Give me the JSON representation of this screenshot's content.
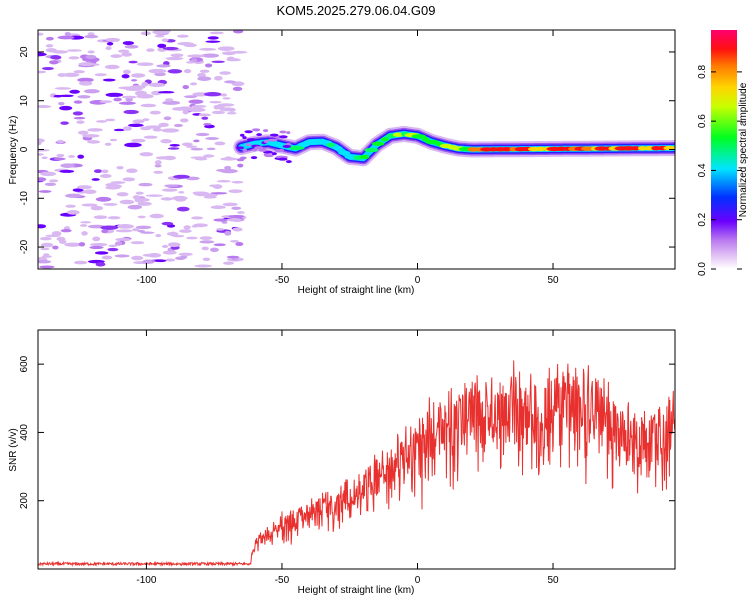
{
  "title": "KOM5.2025.279.06.04.G09",
  "chart_data": [
    {
      "type": "heatmap",
      "name": "spectrogram",
      "xlabel": "Height of straight line (km)",
      "ylabel": "Frequency (Hz)",
      "xlim": [
        -140,
        95
      ],
      "ylim": [
        -24.5,
        24.5
      ],
      "xticks": [
        -100,
        -50,
        0,
        50
      ],
      "yticks": [
        -20,
        -10,
        0,
        10,
        20
      ],
      "noise_region_x": [
        -140,
        -65
      ],
      "signal_start_x": -65,
      "trace_freq": [
        {
          "x": -65,
          "f": 0.5
        },
        {
          "x": -60,
          "f": 1.2
        },
        {
          "x": -55,
          "f": 1.5
        },
        {
          "x": -50,
          "f": 0.8
        },
        {
          "x": -45,
          "f": 0.2
        },
        {
          "x": -40,
          "f": 1.5
        },
        {
          "x": -35,
          "f": 1.6
        },
        {
          "x": -30,
          "f": 0.5
        },
        {
          "x": -25,
          "f": -1.5
        },
        {
          "x": -20,
          "f": -1.8
        },
        {
          "x": -15,
          "f": 1.0
        },
        {
          "x": -10,
          "f": 2.8
        },
        {
          "x": -5,
          "f": 3.2
        },
        {
          "x": 0,
          "f": 2.8
        },
        {
          "x": 5,
          "f": 1.6
        },
        {
          "x": 10,
          "f": 0.8
        },
        {
          "x": 15,
          "f": 0.2
        },
        {
          "x": 20,
          "f": 0.0
        },
        {
          "x": 95,
          "f": 0.3
        }
      ],
      "colorbar": {
        "label": "Normalized spectral amplitude",
        "range": [
          0.0,
          0.97
        ],
        "ticks": [
          "0.0",
          "0.2",
          "0.4",
          "0.6",
          "0.8"
        ],
        "tick_values": [
          0.0,
          0.2,
          0.4,
          0.6,
          0.8
        ]
      }
    },
    {
      "type": "line",
      "name": "snr",
      "xlabel": "Height of straight line (km)",
      "ylabel": "SNR (v/v)",
      "xlim": [
        -140,
        95
      ],
      "ylim": [
        0,
        700
      ],
      "xticks": [
        -100,
        -50,
        0,
        50
      ],
      "yticks": [
        200,
        400,
        600
      ],
      "color": "#e8312f",
      "envelope": [
        {
          "x": -140,
          "y": 15
        },
        {
          "x": -62,
          "y": 15
        },
        {
          "x": -60,
          "y": 90
        },
        {
          "x": -50,
          "y": 160
        },
        {
          "x": -40,
          "y": 190
        },
        {
          "x": -30,
          "y": 230
        },
        {
          "x": -20,
          "y": 290
        },
        {
          "x": -10,
          "y": 360
        },
        {
          "x": 0,
          "y": 440
        },
        {
          "x": 10,
          "y": 510
        },
        {
          "x": 20,
          "y": 555
        },
        {
          "x": 30,
          "y": 520
        },
        {
          "x": 35,
          "y": 580
        },
        {
          "x": 45,
          "y": 540
        },
        {
          "x": 55,
          "y": 575
        },
        {
          "x": 65,
          "y": 560
        },
        {
          "x": 75,
          "y": 470
        },
        {
          "x": 85,
          "y": 440
        },
        {
          "x": 95,
          "y": 500
        }
      ]
    }
  ]
}
